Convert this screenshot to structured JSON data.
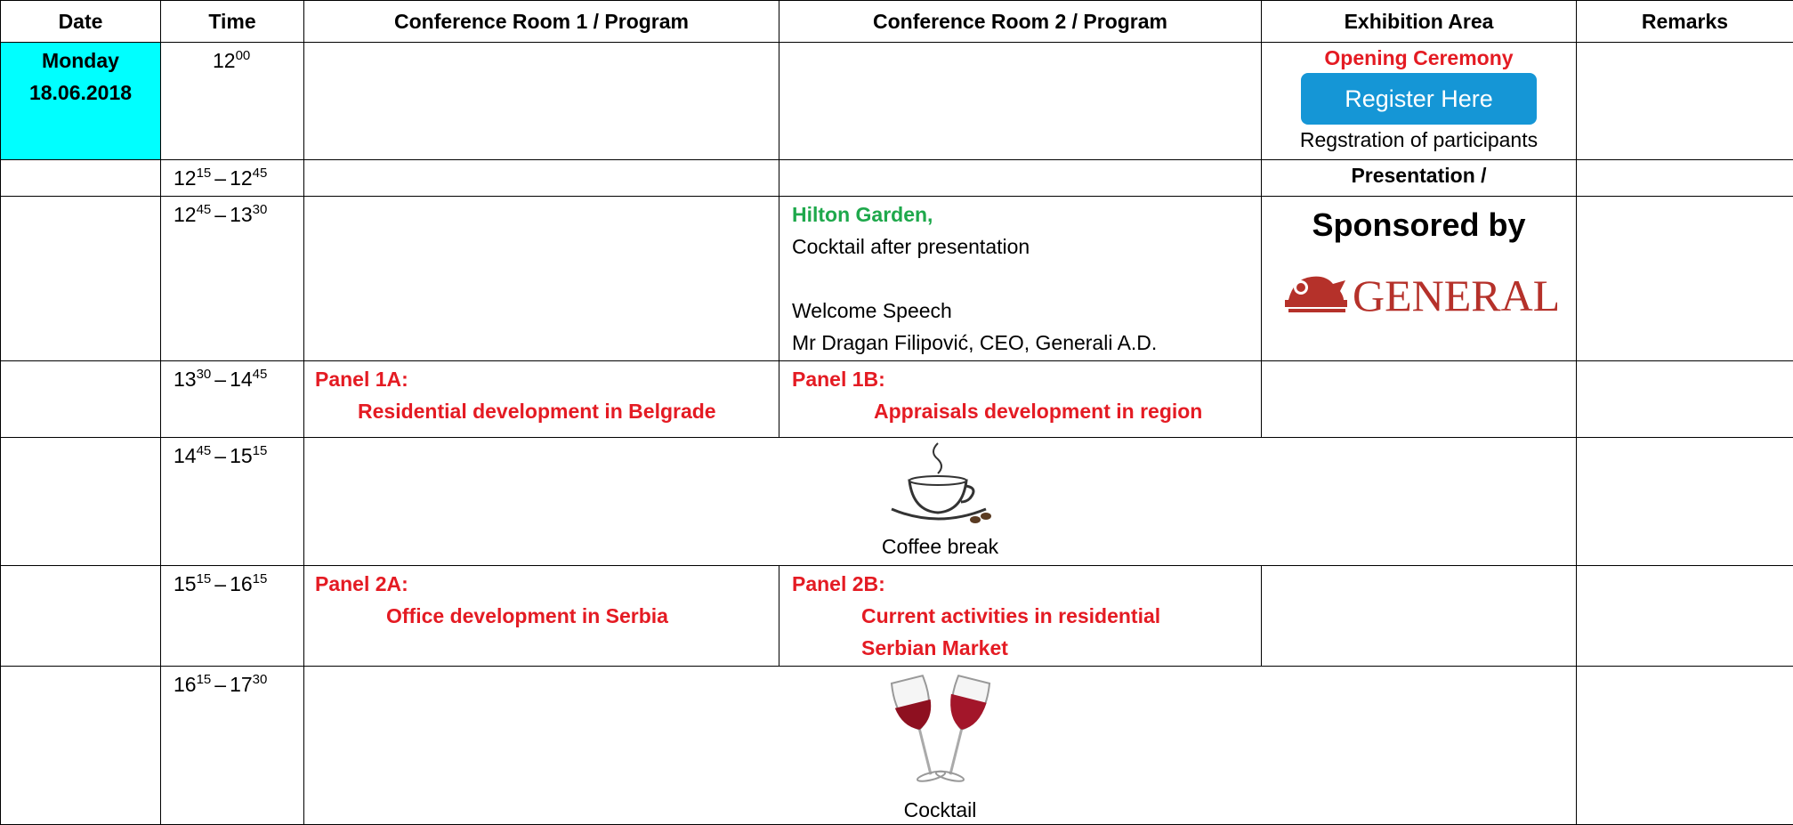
{
  "header": [
    "Date",
    "Time",
    "Conference Room  1  / Program",
    "Conference Room  2  / Program",
    "Exhibition Area",
    "Remarks"
  ],
  "rows": [
    {
      "date": [
        "Monday",
        "18.06.2018"
      ],
      "time": {
        "start": "12",
        "start_sup": "00"
      },
      "exhibition": {
        "title": "Opening Ceremony",
        "button": "Register Here",
        "note": "Regstration of participants"
      }
    },
    {
      "time": {
        "start": "12",
        "start_sup": "15",
        "dash": "–",
        "end": "12",
        "end_sup": "45"
      },
      "exhibition": {
        "title": "Presentation /"
      }
    },
    {
      "time": {
        "start": "12",
        "start_sup": "45",
        "dash": "–",
        "end": "13",
        "end_sup": "30"
      },
      "room2": {
        "venue": "Hilton Garden,",
        "lines": [
          "Cocktail after presentation",
          "Welcome Speech",
          "Mr Dragan Filipović, CEO, Generali A.D."
        ]
      },
      "exhibition": {
        "title": "Sponsored by",
        "logo": "GENERALI"
      }
    },
    {
      "time": {
        "start": "13",
        "start_sup": "30",
        "dash": "–",
        "end": "14",
        "end_sup": "45"
      },
      "room1": {
        "panel": "Panel 1A:",
        "topic": [
          "Residential development in Belgrade"
        ]
      },
      "room2": {
        "panel": "Panel 1B:",
        "topic": [
          "Appraisals development  in region"
        ]
      }
    },
    {
      "time": {
        "start": "14",
        "start_sup": "45",
        "dash": "–",
        "end": "15",
        "end_sup": "15"
      },
      "merged": "Coffee break"
    },
    {
      "time": {
        "start": "15",
        "start_sup": "15",
        "dash": "–",
        "end": "16",
        "end_sup": "15"
      },
      "room1": {
        "panel": "Panel 2A:",
        "topic": [
          "Office development in Serbia"
        ]
      },
      "room2": {
        "panel": "Panel 2B:",
        "topic": [
          "Current activities in residential",
          "Serbian Market"
        ]
      }
    },
    {
      "time": {
        "start": "16",
        "start_sup": "15",
        "dash": "–",
        "end": "17",
        "end_sup": "30"
      },
      "merged": "Cocktail"
    }
  ]
}
